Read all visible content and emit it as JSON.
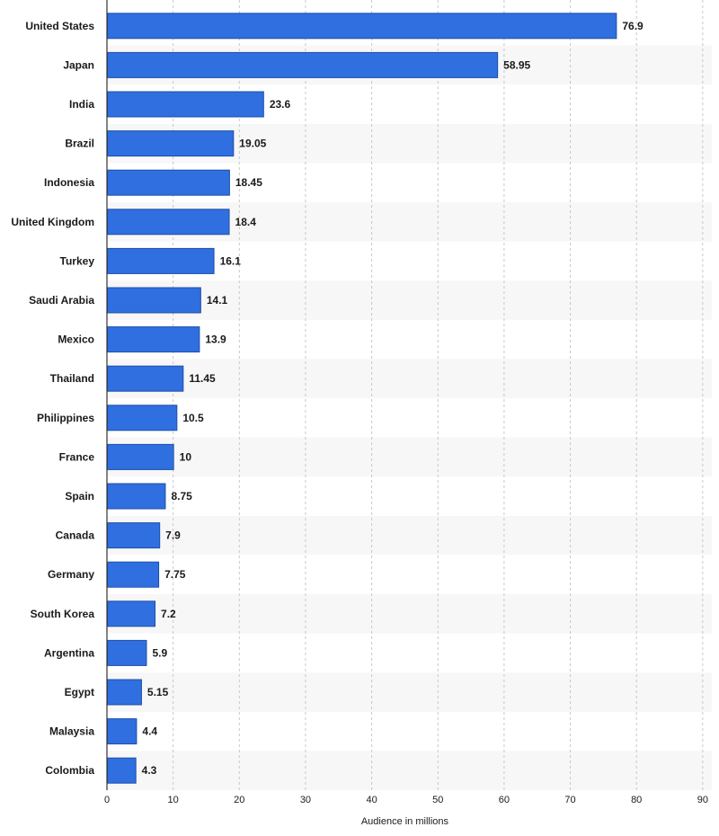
{
  "chart_data": {
    "type": "bar",
    "orientation": "horizontal",
    "categories": [
      "United States",
      "Japan",
      "India",
      "Brazil",
      "Indonesia",
      "United Kingdom",
      "Turkey",
      "Saudi Arabia",
      "Mexico",
      "Thailand",
      "Philippines",
      "France",
      "Spain",
      "Canada",
      "Germany",
      "South Korea",
      "Argentina",
      "Egypt",
      "Malaysia",
      "Colombia"
    ],
    "values": [
      76.9,
      58.95,
      23.6,
      19.05,
      18.45,
      18.4,
      16.1,
      14.1,
      13.9,
      11.45,
      10.5,
      10,
      8.75,
      7.9,
      7.75,
      7.2,
      5.9,
      5.15,
      4.4,
      4.3
    ],
    "value_labels": [
      "76.9",
      "58.95",
      "23.6",
      "19.05",
      "18.45",
      "18.4",
      "16.1",
      "14.1",
      "13.9",
      "11.45",
      "10.5",
      "10",
      "8.75",
      "7.9",
      "7.75",
      "7.2",
      "5.9",
      "5.15",
      "4.4",
      "4.3"
    ],
    "xlabel": "Audience in millions",
    "ylabel": "",
    "title": "",
    "xlim": [
      0,
      90
    ],
    "xticks": [
      0,
      10,
      20,
      30,
      40,
      50,
      60,
      70,
      80,
      90
    ],
    "grid": "vertical dashed",
    "bar_color": "#2f6fe0",
    "bar_border_color": "#1f4fa8",
    "band_color": "#f7f7f7",
    "legend": "none"
  }
}
